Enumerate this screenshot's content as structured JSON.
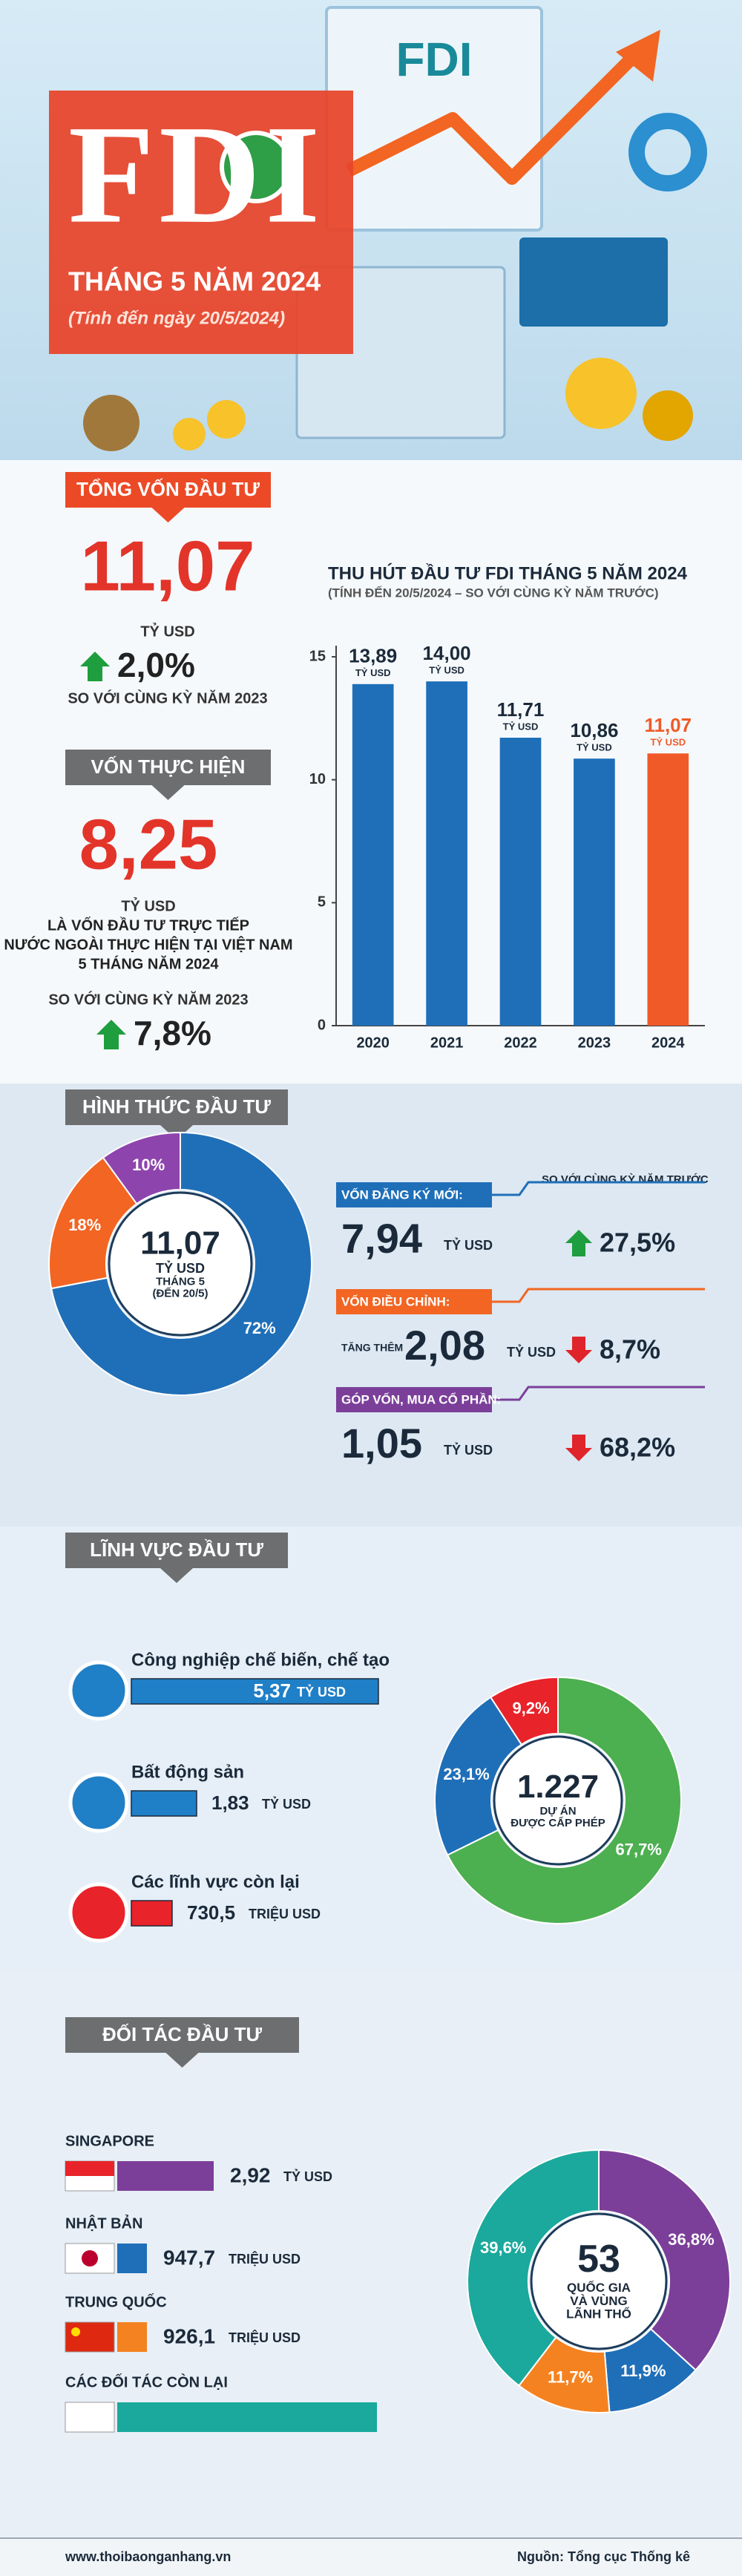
{
  "header": {
    "title": "FDI",
    "board_label": "FDI",
    "subtitle": "THÁNG 5 NĂM 2024",
    "note": "(Tính đến ngày 20/5/2024)"
  },
  "total": {
    "heading": "TỔNG VỐN ĐẦU TƯ",
    "amount": "11,07",
    "unit": "TỶ USD",
    "change": "2,0%",
    "direction": "up",
    "comparison": "SO VỚI CÙNG KỲ NĂM 2023"
  },
  "disbursed": {
    "heading": "VỐN THỰC HIỆN",
    "amount": "8,25",
    "unit": "TỶ USD",
    "description": [
      "LÀ VỐN ĐẦU TƯ TRỰC TIẾP",
      "NƯỚC NGOÀI THỰC HIỆN TẠI VIỆT NAM",
      "5 THÁNG NĂM 2024"
    ],
    "comparison": "SO VỚI CÙNG KỲ NĂM 2023",
    "change": "7,8%",
    "direction": "up"
  },
  "forms": {
    "heading": "HÌNH THỨC ĐẦU TƯ",
    "comparison_note": "SO VỚI CÙNG KỲ NĂM TRƯỚC",
    "items": [
      {
        "label": "VỐN ĐĂNG KÝ MỚI:",
        "amount": "7,94",
        "unit": "TỶ USD",
        "change": "27,5%",
        "direction": "up",
        "color": "#1f6fb8"
      },
      {
        "label": "VỐN ĐIỀU CHỈNH:",
        "prefix": "TĂNG THÊM",
        "amount": "2,08",
        "unit": "TỶ USD",
        "change": "8,7%",
        "direction": "down",
        "color": "#f26522"
      },
      {
        "label": "GÓP VỐN, MUA CỔ PHẦN:",
        "amount": "1,05",
        "unit": "TỶ USD",
        "change": "68,2%",
        "direction": "down",
        "color": "#7b3f99"
      }
    ]
  },
  "sectors": {
    "heading": "LĨNH VỰC ĐẦU TƯ",
    "items": [
      {
        "label": "Công nghiệp chế biến, chế tạo",
        "amount": "5,37",
        "unit": "TỶ USD",
        "color": "#1f7fc7"
      },
      {
        "label": "Bất động sản",
        "amount": "1,83",
        "unit": "TỶ USD",
        "color": "#1f7fc7"
      },
      {
        "label": "Các lĩnh vực còn lại",
        "amount": "730,5",
        "unit": "TRIỆU USD",
        "color": "#e8232a"
      }
    ]
  },
  "partners": {
    "heading": "ĐỐI TÁC ĐẦU TƯ",
    "items": [
      {
        "label": "SINGAPORE",
        "amount": "2,92",
        "unit": "TỶ USD",
        "color": "#7b3f99"
      },
      {
        "label": "NHẬT BẢN",
        "amount": "947,7",
        "unit": "TRIỆU USD",
        "color": "#1f6fb8"
      },
      {
        "label": "TRUNG QUỐC",
        "amount": "926,1",
        "unit": "TRIỆU USD",
        "color": "#f58220"
      },
      {
        "label": "CÁC ĐỐI TÁC CÒN LẠI",
        "color": "#1aa99c"
      }
    ]
  },
  "chart_data": [
    {
      "type": "bar",
      "title": "THU HÚT ĐẦU TƯ FDI THÁNG 5 NĂM 2024",
      "subtitle": "(TÍNH ĐẾN 20/5/2024 – SO VỚI CÙNG KỲ NĂM TRƯỚC)",
      "categories": [
        "2020",
        "2021",
        "2022",
        "2023",
        "2024"
      ],
      "values": [
        13.89,
        14.0,
        11.71,
        10.86,
        11.07
      ],
      "value_labels": [
        "13,89",
        "14,00",
        "11,71",
        "10,86",
        "11,07"
      ],
      "value_unit": "TỶ USD",
      "colors": [
        "#1f6fb8",
        "#1f6fb8",
        "#1f6fb8",
        "#1f6fb8",
        "#f05a28"
      ],
      "ylim": [
        0,
        15
      ],
      "yticks": [
        0,
        5,
        10,
        15
      ]
    },
    {
      "type": "donut",
      "values": [
        72,
        18,
        10
      ],
      "value_labels": [
        "72%",
        "18%",
        "10%"
      ],
      "colors": [
        "#1f6fb8",
        "#f26522",
        "#8e44ad"
      ],
      "center_text": [
        "11,07",
        "TỶ USD",
        "THÁNG 5",
        "(ĐẾN 20/5)"
      ]
    },
    {
      "type": "donut",
      "values": [
        67.7,
        23.1,
        9.2
      ],
      "value_labels": [
        "67,7%",
        "23,1%",
        "9,2%"
      ],
      "colors": [
        "#4caf50",
        "#1f6fb8",
        "#e8232a"
      ],
      "center_text": [
        "1.227",
        "DỰ ÁN",
        "ĐƯỢC CẤP PHÉP"
      ]
    },
    {
      "type": "donut",
      "values": [
        36.8,
        11.9,
        11.7,
        39.6
      ],
      "value_labels": [
        "36,8%",
        "11,9%",
        "11,7%",
        "39,6%"
      ],
      "colors": [
        "#7b3f99",
        "#1f6fb8",
        "#f58220",
        "#1aa99c"
      ],
      "center_text": [
        "53",
        "QUỐC GIA",
        "VÀ VÙNG",
        "LÃNH THỔ"
      ]
    }
  ],
  "footer": {
    "website": "www.thoibaonganhang.vn",
    "source": "Nguồn: Tổng cục Thống kê"
  }
}
